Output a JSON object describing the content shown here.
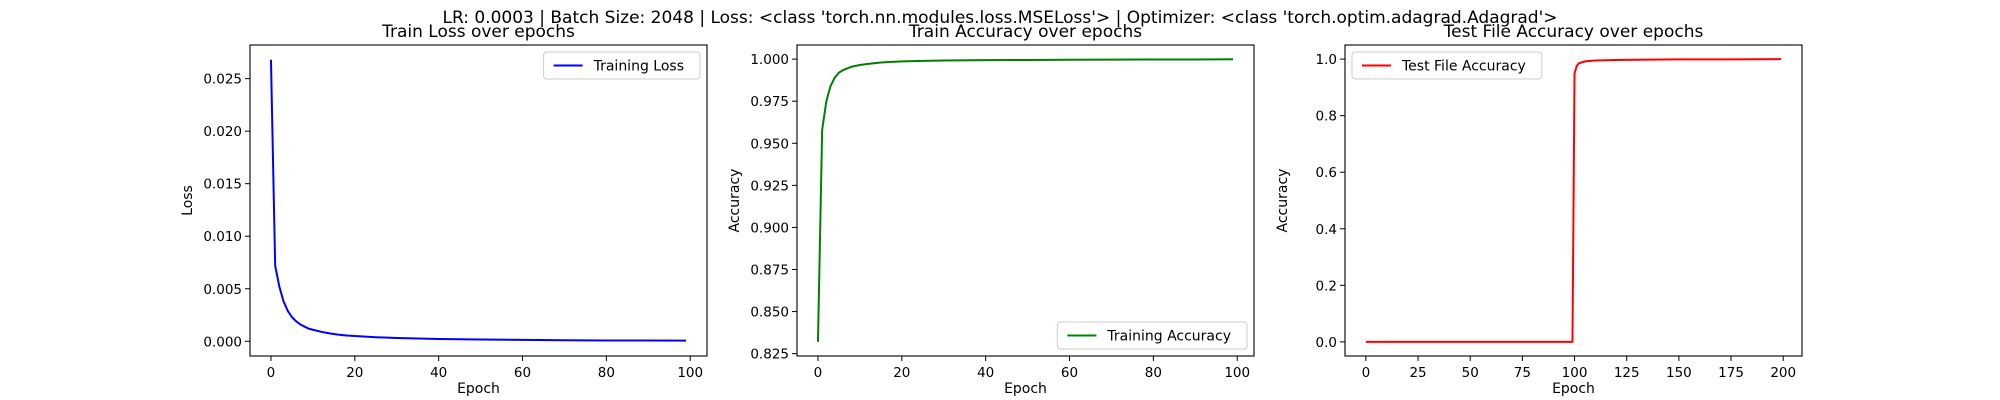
{
  "figure": {
    "suptitle": "LR: 0.0003 | Batch Size: 2048 | Loss: <class 'torch.nn.modules.loss.MSELoss'> | Optimizer: <class 'torch.optim.adagrad.Adagrad'>"
  },
  "chart_data": [
    {
      "type": "line",
      "title": "Train Loss over epochs",
      "xlabel": "Epoch",
      "ylabel": "Loss",
      "xlim": [
        -5,
        104
      ],
      "ylim": [
        -0.0014,
        0.0282
      ],
      "xticks": [
        0,
        20,
        40,
        60,
        80,
        100
      ],
      "yticks": [
        0.0,
        0.005,
        0.01,
        0.015,
        0.02,
        0.025
      ],
      "ytick_labels": [
        "0.000",
        "0.005",
        "0.010",
        "0.015",
        "0.020",
        "0.025"
      ],
      "grid": false,
      "legend": "upper right",
      "series": [
        {
          "name": "Training Loss",
          "color": "#0000ff",
          "x": [
            0,
            1,
            2,
            3,
            4,
            5,
            6,
            7,
            8,
            9,
            10,
            12,
            14,
            16,
            18,
            20,
            25,
            30,
            35,
            40,
            50,
            60,
            70,
            80,
            90,
            99
          ],
          "y": [
            0.0268,
            0.0072,
            0.0052,
            0.0038,
            0.0029,
            0.0023,
            0.0019,
            0.0016,
            0.0014,
            0.0012,
            0.0011,
            0.0009,
            0.00075,
            0.00063,
            0.00055,
            0.0005,
            0.00039,
            0.00031,
            0.00026,
            0.00022,
            0.00017,
            0.00013,
            0.0001,
            8e-05,
            7e-05,
            6e-05
          ]
        }
      ]
    },
    {
      "type": "line",
      "title": "Train Accuracy over epochs",
      "xlabel": "Epoch",
      "ylabel": "Accuracy",
      "xlim": [
        -5,
        104
      ],
      "ylim": [
        0.8236,
        1.0084
      ],
      "xticks": [
        0,
        20,
        40,
        60,
        80,
        100
      ],
      "yticks": [
        0.825,
        0.85,
        0.875,
        0.9,
        0.925,
        0.95,
        0.975,
        1.0
      ],
      "ytick_labels": [
        "0.825",
        "0.850",
        "0.875",
        "0.900",
        "0.925",
        "0.950",
        "0.975",
        "1.000"
      ],
      "grid": false,
      "legend": "lower right",
      "series": [
        {
          "name": "Training Accuracy",
          "color": "#008000",
          "x": [
            0,
            1,
            2,
            3,
            4,
            5,
            6,
            7,
            8,
            10,
            12,
            15,
            20,
            25,
            30,
            40,
            50,
            60,
            70,
            80,
            90,
            99
          ],
          "y": [
            0.832,
            0.958,
            0.975,
            0.984,
            0.989,
            0.992,
            0.9935,
            0.9945,
            0.9955,
            0.9965,
            0.9972,
            0.998,
            0.9987,
            0.999,
            0.9992,
            0.9994,
            0.9995,
            0.9996,
            0.9997,
            0.9998,
            0.9998,
            0.9999
          ]
        }
      ]
    },
    {
      "type": "line",
      "title": "Test File Accuracy over epochs",
      "xlabel": "Epoch",
      "ylabel": "Accuracy",
      "xlim": [
        -10,
        209
      ],
      "ylim": [
        -0.05,
        1.05
      ],
      "xticks": [
        0,
        25,
        50,
        75,
        100,
        125,
        150,
        175,
        200
      ],
      "yticks": [
        0.0,
        0.2,
        0.4,
        0.6,
        0.8,
        1.0
      ],
      "ytick_labels": [
        "0.0",
        "0.2",
        "0.4",
        "0.6",
        "0.8",
        "1.0"
      ],
      "grid": false,
      "legend": "upper left",
      "series": [
        {
          "name": "Test File Accuracy",
          "color": "#ff0000",
          "x": [
            0,
            99,
            100,
            101,
            102,
            104,
            106,
            110,
            115,
            120,
            130,
            150,
            175,
            199
          ],
          "y": [
            0.0,
            0.0,
            0.95,
            0.975,
            0.985,
            0.99,
            0.993,
            0.995,
            0.996,
            0.997,
            0.998,
            0.999,
            0.999,
            1.0
          ]
        }
      ]
    }
  ]
}
